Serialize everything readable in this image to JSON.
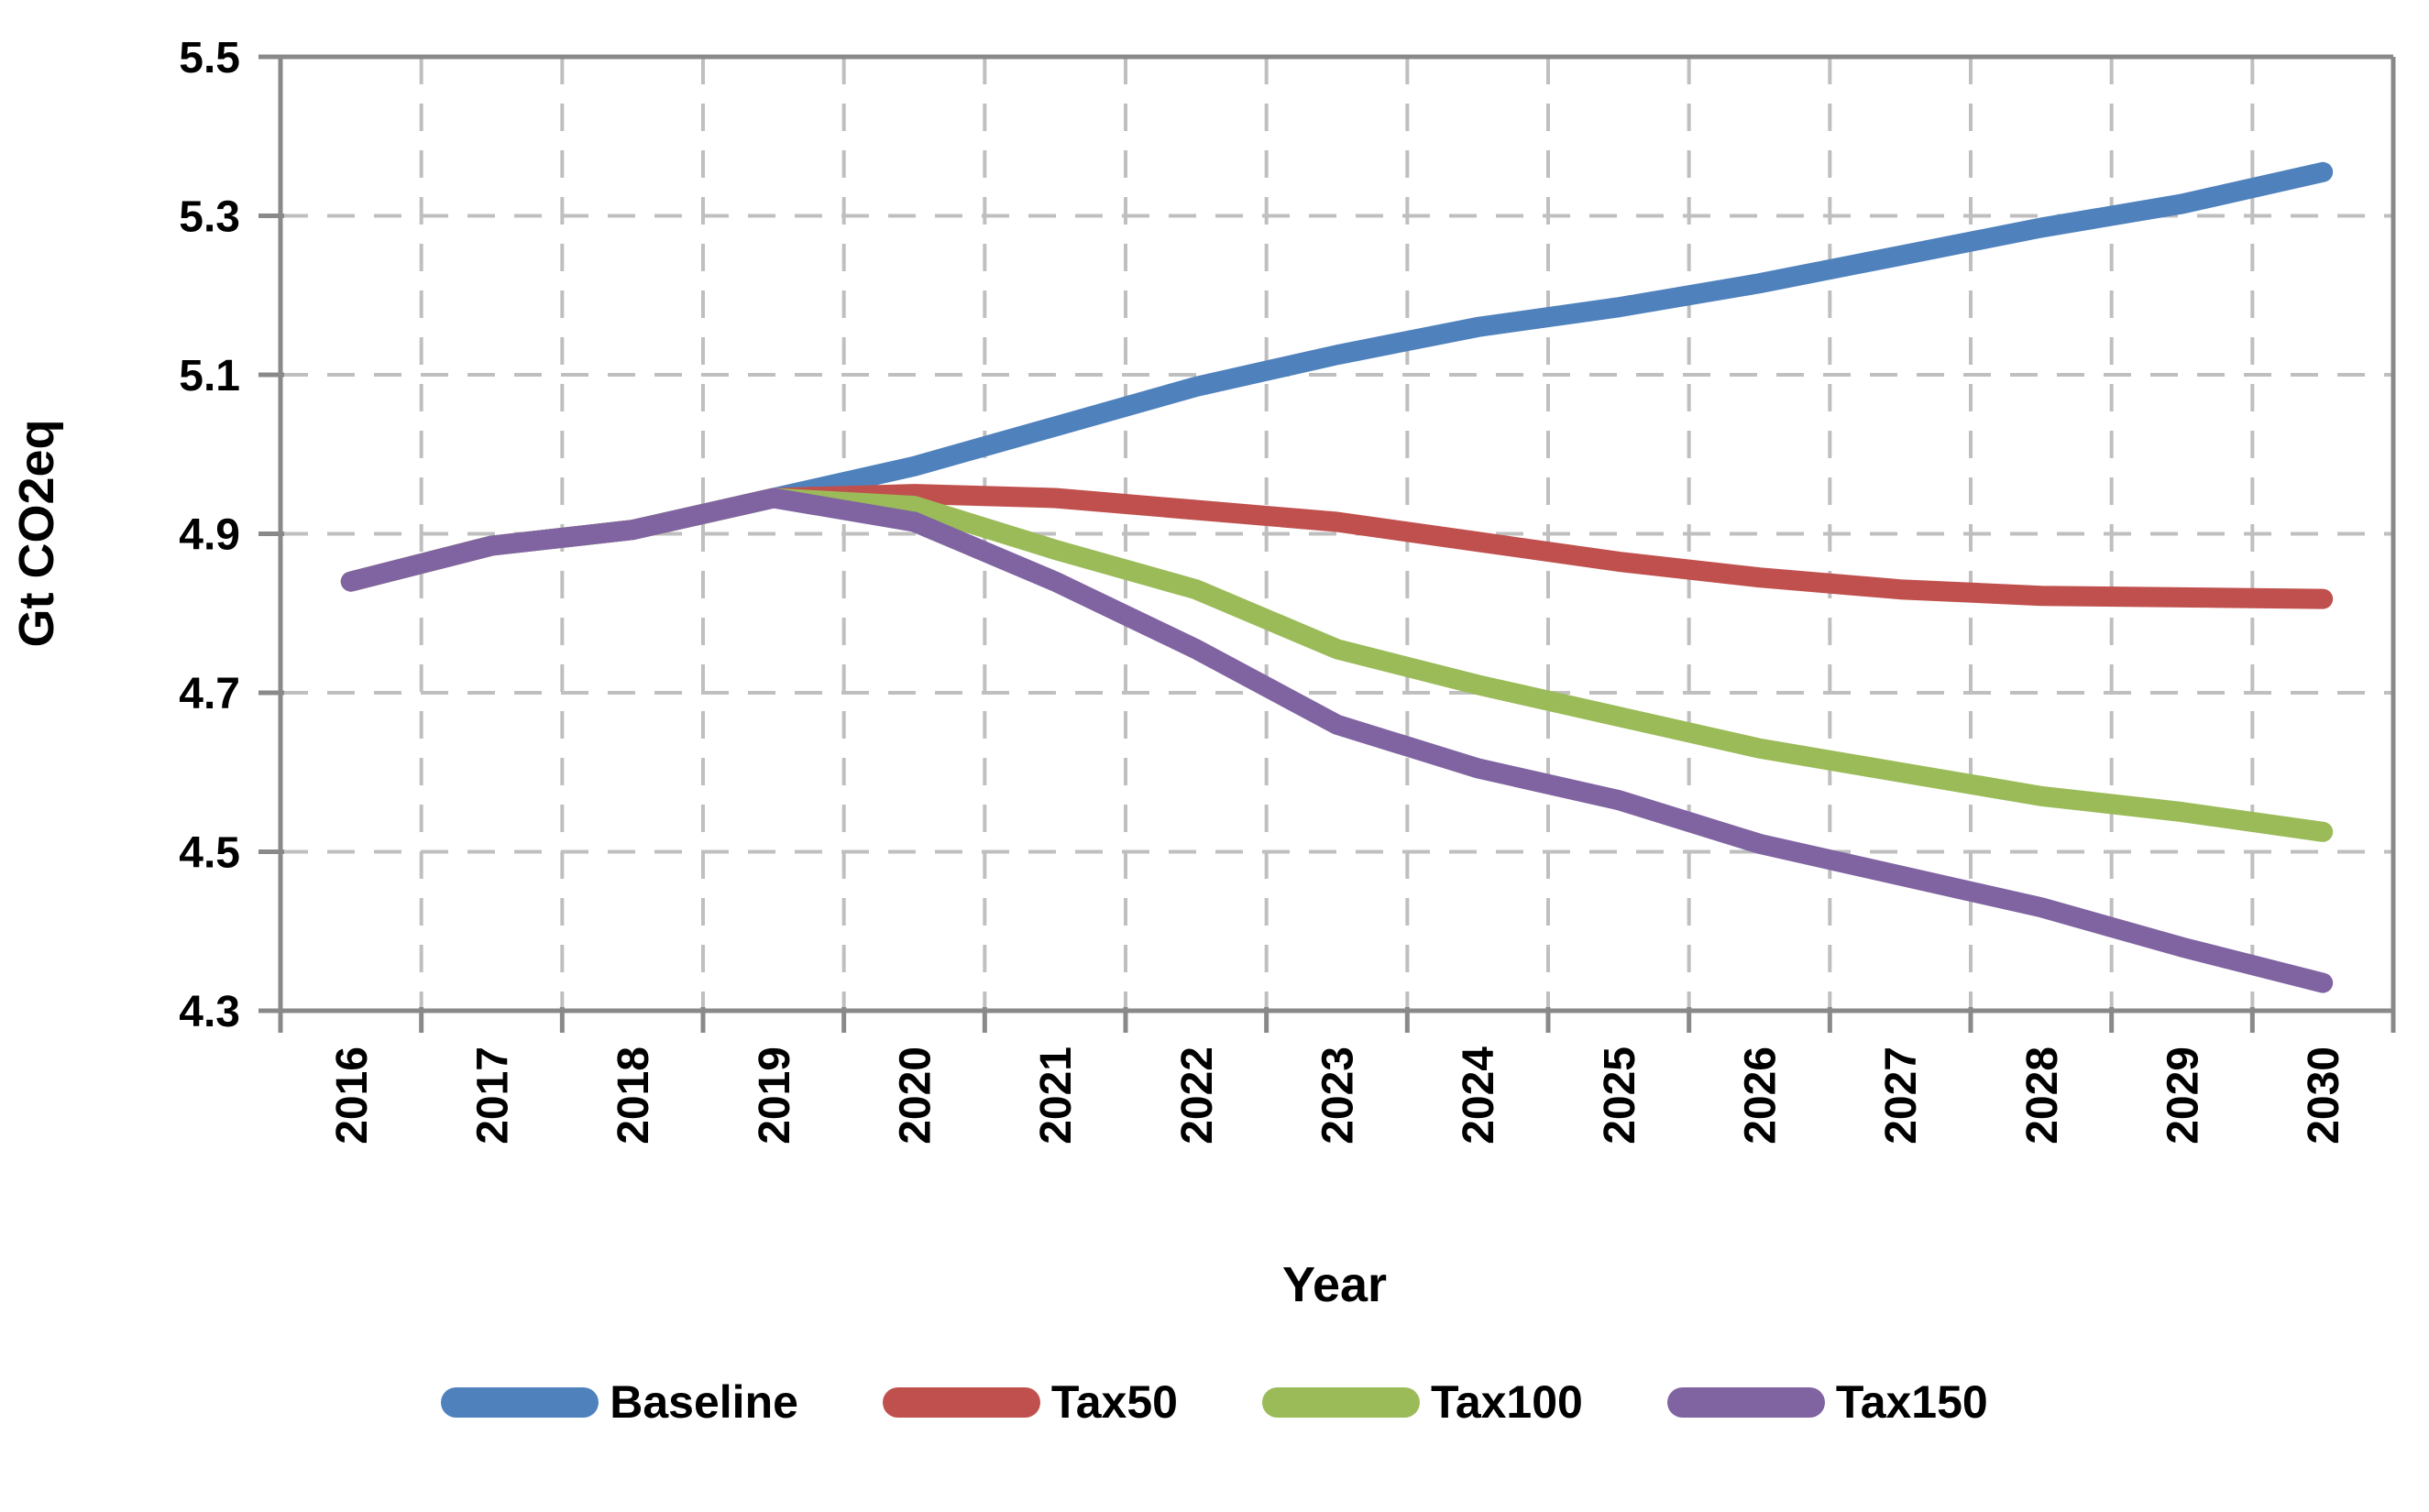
{
  "chart_data": {
    "type": "line",
    "title": "",
    "xlabel": "Year",
    "ylabel": "Gt CO2eq",
    "x": [
      2016,
      2017,
      2018,
      2019,
      2020,
      2021,
      2022,
      2023,
      2024,
      2025,
      2026,
      2027,
      2028,
      2029,
      2030
    ],
    "series": [
      {
        "name": "Baseline",
        "color": "#4F81BD",
        "values": [
          4.84,
          4.885,
          4.905,
          4.945,
          4.985,
          5.035,
          5.085,
          5.125,
          5.16,
          5.185,
          5.215,
          5.25,
          5.285,
          5.315,
          5.355
        ]
      },
      {
        "name": "Tax50",
        "color": "#C0504D",
        "values": [
          4.84,
          4.885,
          4.905,
          4.945,
          4.95,
          4.945,
          4.93,
          4.915,
          4.89,
          4.865,
          4.845,
          4.83,
          4.822,
          4.82,
          4.818
        ]
      },
      {
        "name": "Tax100",
        "color": "#9BBB59",
        "values": [
          4.84,
          4.885,
          4.905,
          4.945,
          4.935,
          4.88,
          4.83,
          4.755,
          4.71,
          4.67,
          4.63,
          4.6,
          4.57,
          4.55,
          4.525
        ]
      },
      {
        "name": "Tax150",
        "color": "#8064A2",
        "values": [
          4.84,
          4.885,
          4.905,
          4.945,
          4.915,
          4.84,
          4.755,
          4.66,
          4.605,
          4.565,
          4.51,
          4.47,
          4.43,
          4.38,
          4.335
        ]
      }
    ],
    "ylim": [
      4.3,
      5.5
    ],
    "yticks": [
      4.3,
      4.5,
      4.7,
      4.9,
      5.1,
      5.3,
      5.5
    ],
    "xtick_labels": [
      "2016",
      "2017",
      "2018",
      "2019",
      "2020",
      "2021",
      "2022",
      "2023",
      "2024",
      "2025",
      "2026",
      "2027",
      "2028",
      "2029",
      "2030"
    ],
    "grid": true,
    "grid_style": "dashed",
    "legend_position": "bottom"
  },
  "axes": {
    "x_title": "Year",
    "y_title": "Gt CO2eq"
  },
  "colors": {
    "background": "#FFFFFF",
    "gridline": "#BFBFBF",
    "axis_line": "#898989",
    "text": "#000000"
  }
}
